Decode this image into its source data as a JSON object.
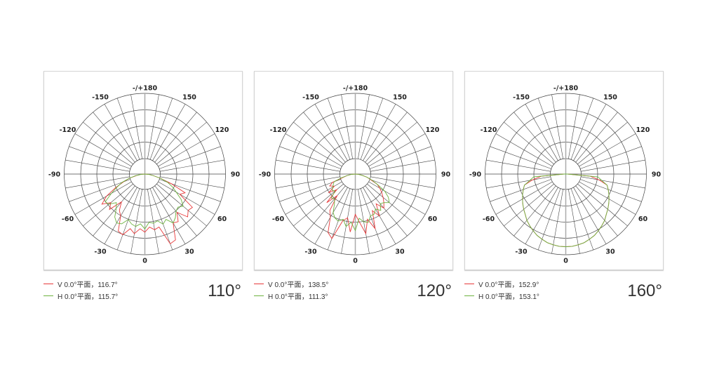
{
  "colors": {
    "V": "#e8393a",
    "H": "#6db33f",
    "grid": "#444444",
    "axis": "#aaaaaa"
  },
  "chart_data": [
    {
      "type": "polar",
      "beam_label": "110°",
      "angle_labels": [
        "-/+180",
        "150",
        "120",
        "90",
        "60",
        "30",
        "0",
        "-30",
        "-60",
        "-90",
        "-120",
        "-150"
      ],
      "grid": true,
      "angles": [
        -90,
        -85,
        -80,
        -75,
        -70,
        -65,
        -60,
        -55,
        -50,
        -45,
        -40,
        -35,
        -30,
        -25,
        -20,
        -15,
        -10,
        -5,
        0,
        5,
        10,
        15,
        20,
        25,
        30,
        35,
        40,
        45,
        50,
        55,
        60,
        65,
        70,
        75,
        80,
        85,
        90
      ],
      "series": [
        {
          "name": "V 0.0°平面，116.7°",
          "values": [
            0,
            0.05,
            0.1,
            0.2,
            0.28,
            0.4,
            0.55,
            0.65,
            0.55,
            0.62,
            0.45,
            0.55,
            0.6,
            0.78,
            0.8,
            0.7,
            0.75,
            0.68,
            0.72,
            0.66,
            0.7,
            0.68,
            0.92,
            0.9,
            0.7,
            0.72,
            0.62,
            0.75,
            0.7,
            0.72,
            0.5,
            0.55,
            0.35,
            0.2,
            0.1,
            0.05,
            0
          ]
        },
        {
          "name": "H 0.0°平面，115.7°",
          "values": [
            0,
            0.05,
            0.12,
            0.2,
            0.3,
            0.38,
            0.48,
            0.6,
            0.58,
            0.5,
            0.55,
            0.65,
            0.7,
            0.68,
            0.6,
            0.64,
            0.66,
            0.62,
            0.68,
            0.6,
            0.62,
            0.6,
            0.66,
            0.62,
            0.7,
            0.66,
            0.6,
            0.58,
            0.62,
            0.55,
            0.45,
            0.38,
            0.3,
            0.2,
            0.1,
            0.05,
            0
          ]
        }
      ]
    },
    {
      "type": "polar",
      "beam_label": "120°",
      "angle_labels": [
        "-/+180",
        "150",
        "120",
        "90",
        "60",
        "30",
        "0",
        "-30",
        "-60",
        "-90",
        "-120",
        "-150"
      ],
      "grid": true,
      "angles": [
        -90,
        -85,
        -80,
        -75,
        -70,
        -65,
        -60,
        -55,
        -50,
        -45,
        -40,
        -35,
        -30,
        -25,
        -20,
        -15,
        -10,
        -5,
        0,
        5,
        10,
        15,
        20,
        25,
        30,
        35,
        40,
        45,
        50,
        55,
        60,
        65,
        70,
        75,
        80,
        85,
        90
      ],
      "series": [
        {
          "name": "V 0.0°平面，138.5°",
          "values": [
            0,
            0.05,
            0.1,
            0.15,
            0.3,
            0.35,
            0.3,
            0.4,
            0.3,
            0.5,
            0.35,
            0.55,
            0.62,
            0.8,
            0.85,
            0.6,
            0.55,
            0.72,
            0.5,
            0.6,
            0.75,
            0.58,
            0.72,
            0.5,
            0.6,
            0.45,
            0.55,
            0.5,
            0.45,
            0.4,
            0.35,
            0.3,
            0.2,
            0.15,
            0.08,
            0.04,
            0
          ]
        },
        {
          "name": "H 0.0°平面，111.3°",
          "values": [
            0,
            0.05,
            0.1,
            0.18,
            0.28,
            0.3,
            0.32,
            0.35,
            0.33,
            0.42,
            0.4,
            0.45,
            0.55,
            0.6,
            0.62,
            0.58,
            0.66,
            0.6,
            0.7,
            0.55,
            0.6,
            0.62,
            0.55,
            0.55,
            0.5,
            0.55,
            0.48,
            0.5,
            0.55,
            0.5,
            0.42,
            0.3,
            0.22,
            0.15,
            0.08,
            0.04,
            0
          ]
        }
      ]
    },
    {
      "type": "polar",
      "beam_label": "160°",
      "angle_labels": [
        "-/+180",
        "150",
        "120",
        "90",
        "60",
        "30",
        "0",
        "-30",
        "-60",
        "-90",
        "-120",
        "-150"
      ],
      "grid": true,
      "angles": [
        -90,
        -85,
        -80,
        -75,
        -70,
        -65,
        -60,
        -55,
        -50,
        -45,
        -40,
        -35,
        -30,
        -25,
        -20,
        -15,
        -10,
        -5,
        0,
        5,
        10,
        15,
        20,
        25,
        30,
        35,
        40,
        45,
        50,
        55,
        60,
        65,
        70,
        75,
        80,
        85,
        90
      ],
      "series": [
        {
          "name": "V 0.0°平面，152.9°",
          "values": [
            0.02,
            0.3,
            0.42,
            0.53,
            0.56,
            0.59,
            0.62,
            0.65,
            0.68,
            0.71,
            0.75,
            0.78,
            0.81,
            0.84,
            0.86,
            0.88,
            0.89,
            0.9,
            0.9,
            0.9,
            0.89,
            0.88,
            0.86,
            0.84,
            0.81,
            0.78,
            0.75,
            0.71,
            0.68,
            0.65,
            0.62,
            0.59,
            0.56,
            0.53,
            0.42,
            0.3,
            0.02
          ]
        },
        {
          "name": "H 0.0°平面，153.1°",
          "values": [
            0.02,
            0.4,
            0.45,
            0.53,
            0.56,
            0.59,
            0.62,
            0.65,
            0.68,
            0.71,
            0.75,
            0.78,
            0.81,
            0.84,
            0.86,
            0.88,
            0.89,
            0.9,
            0.9,
            0.9,
            0.89,
            0.88,
            0.86,
            0.84,
            0.81,
            0.78,
            0.75,
            0.71,
            0.68,
            0.65,
            0.62,
            0.59,
            0.56,
            0.53,
            0.45,
            0.4,
            0.02
          ]
        }
      ]
    }
  ]
}
